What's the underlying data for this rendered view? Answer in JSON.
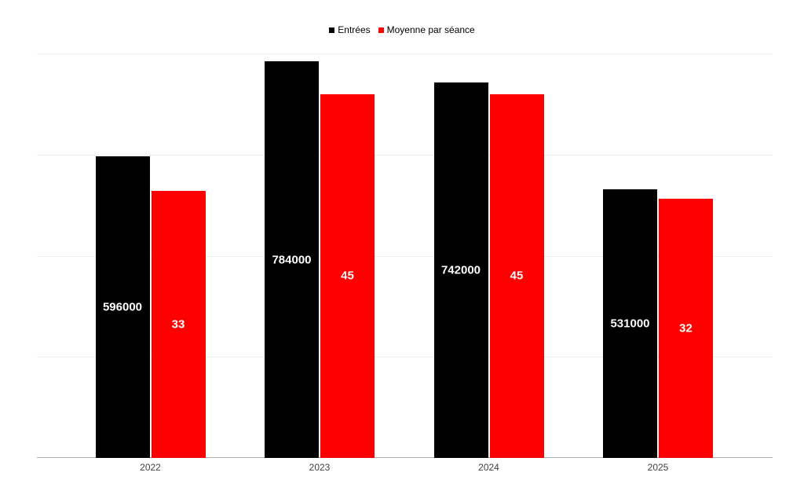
{
  "chart_data": {
    "type": "bar",
    "title": "",
    "categories": [
      "2022",
      "2023",
      "2024",
      "2025"
    ],
    "series": [
      {
        "name": "Entrées",
        "color": "#000000",
        "values": [
          596000,
          784000,
          742000,
          531000
        ],
        "data_labels": [
          "596000",
          "784000",
          "742000",
          "531000"
        ],
        "axis": "left",
        "axis_min": 0,
        "axis_max": 800000
      },
      {
        "name": "Moyenne par séance",
        "color": "#ff0000",
        "values": [
          33,
          45,
          45,
          32
        ],
        "data_labels": [
          "33",
          "45",
          "45",
          "32"
        ],
        "axis": "right",
        "axis_min": 0,
        "axis_max": 50
      }
    ],
    "left_axis": {
      "min": 0,
      "max": 800000,
      "tick_labels_visible": false
    },
    "right_axis": {
      "min": 0,
      "max": 50,
      "tick_labels_visible": false
    },
    "legend_position": "top",
    "grid": true,
    "gridline_levels_left_axis": [
      0,
      200000,
      400000,
      600000,
      800000
    ],
    "background_color": "#ffffff",
    "data_label_color": "#ffffff",
    "x_label_color": "#404040",
    "gridline_color": "#ededed",
    "axis_line_color": "#b0b0b0"
  }
}
